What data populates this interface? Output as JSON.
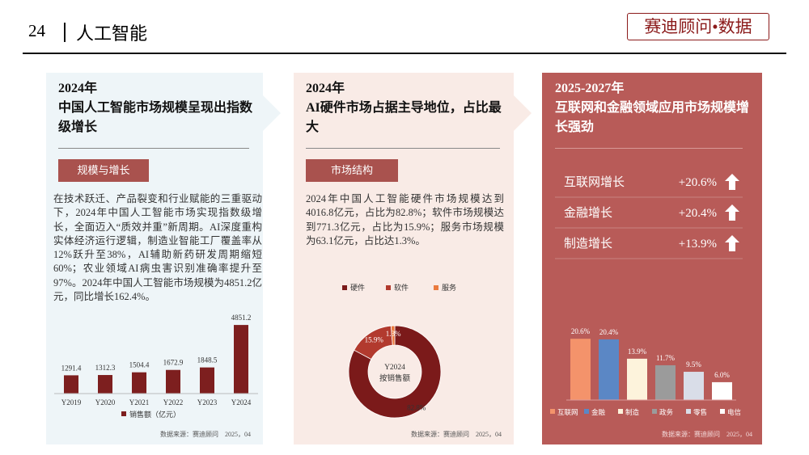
{
  "header": {
    "page": "24",
    "title": "人工智能",
    "brand": "赛迪顾问•数据"
  },
  "panels": [
    {
      "year": "2024年",
      "title": "中国人工智能市场规模呈现出指数级增长",
      "tag": "规模与增长",
      "text": "在技术跃迁、产品裂变和行业赋能的三重驱动下，2024年中国人工智能市场实现指数级增长，全面迈入“质效并重”新周期。AI深度重构实体经济运行逻辑，制造业智能工厂覆盖率从12%跃升至38%，AI辅助新药研发周期缩短60%；农业领域AI病虫害识别准确率提升至97%。2024年中国人工智能市场规模为4851.2亿元，同比增长162.4%。",
      "source": "数据来源：赛迪顾问　2025，04"
    },
    {
      "year": "2024年",
      "title": "AI硬件市场占据主导地位，占比最大",
      "tag": "市场结构",
      "text": "2024年中国人工智能硬件市场规模达到4016.8亿元，占比为82.8%；软件市场规模达到771.3亿元，占比为15.9%；服务市场规模为63.1亿元，占比达1.3%。",
      "source": "数据来源：赛迪顾问　2025，04"
    },
    {
      "year": "2025-2027年",
      "title": "互联网和金融领域应用市场规模增长强劲",
      "rows": [
        {
          "label": "互联网增长",
          "value": "+20.6%"
        },
        {
          "label": "金融增长",
          "value": "+20.4%"
        },
        {
          "label": "制造增长",
          "value": "+13.9%"
        }
      ],
      "source": "数据来源：赛迪顾问　2025，04"
    }
  ],
  "chart_data": [
    {
      "type": "bar",
      "categories": [
        "Y2019",
        "Y2020",
        "Y2021",
        "Y2022",
        "Y2023",
        "Y2024"
      ],
      "series": [
        {
          "name": "销售额（亿元）",
          "color": "#7d1f1f",
          "values": [
            1291.4,
            1312.3,
            1504.4,
            1672.9,
            1848.5,
            4851.2
          ]
        }
      ],
      "ylim": [
        0,
        6000
      ]
    },
    {
      "type": "pie",
      "categories": [
        "硬件",
        "软件",
        "服务"
      ],
      "values": [
        82.8,
        15.9,
        1.3
      ],
      "value_labels": [
        "82.8%",
        "15.9%",
        "1.3%"
      ],
      "colors": [
        "#7b1a1a",
        "#b23a2e",
        "#ea7a3e"
      ],
      "center_label": [
        "Y2024",
        "按销售额"
      ]
    },
    {
      "type": "bar",
      "categories": [
        "互联网",
        "金融",
        "制造",
        "政务",
        "零售",
        "电信"
      ],
      "values": [
        20.6,
        20.4,
        13.9,
        11.7,
        9.5,
        6.0
      ],
      "value_labels": [
        "20.6%",
        "20.4%",
        "13.9%",
        "11.7%",
        "9.5%",
        "6.0%"
      ],
      "colors": [
        "#f4936b",
        "#5b87c5",
        "#fdf3dc",
        "#9b9b9b",
        "#d9dde8",
        "#ffffff"
      ],
      "ylim": [
        0,
        25
      ]
    }
  ]
}
